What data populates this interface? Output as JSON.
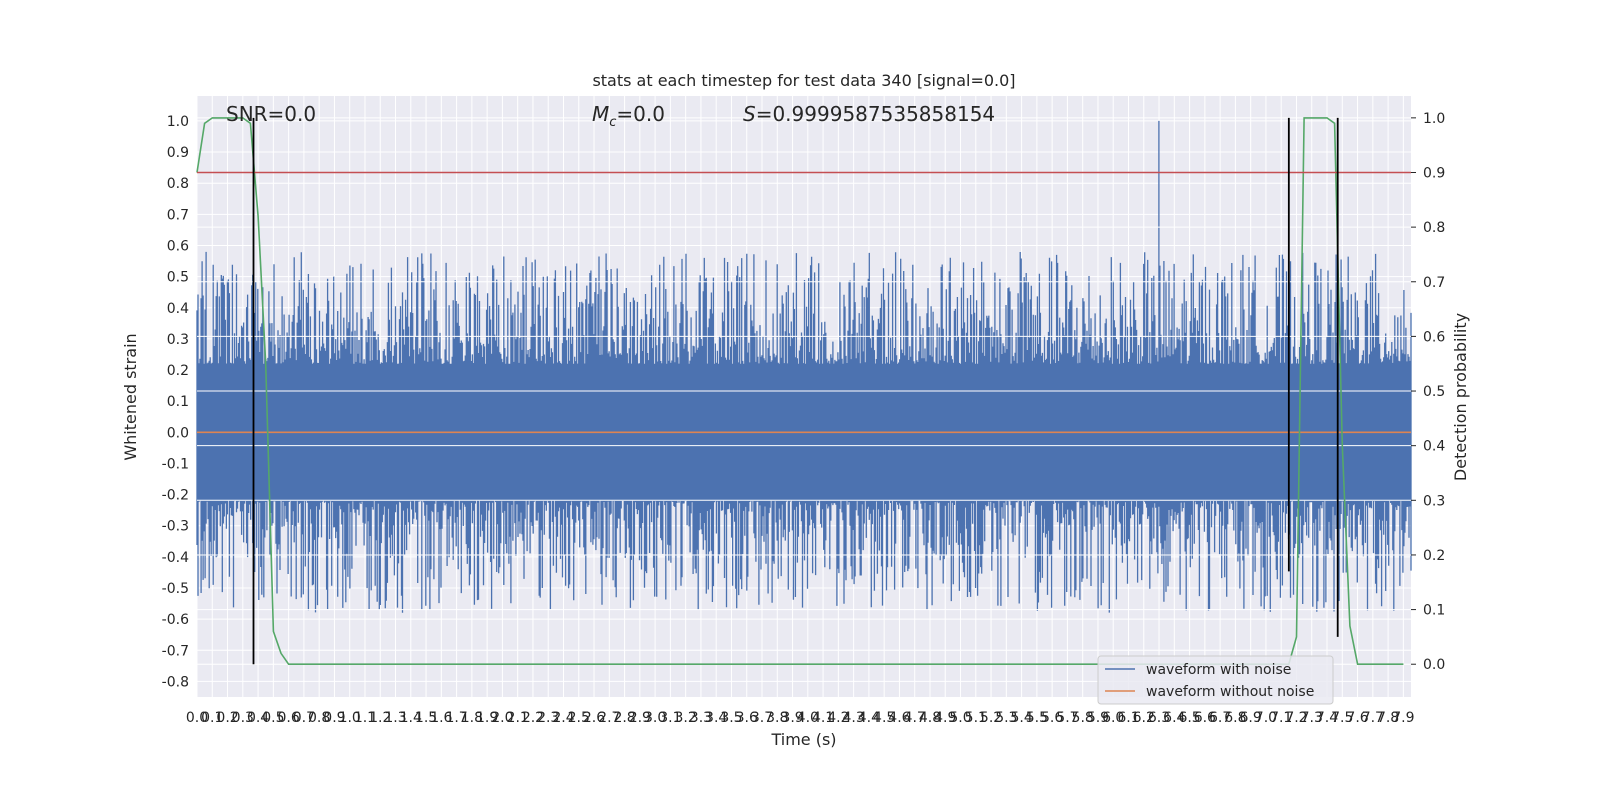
{
  "chart_data": {
    "type": "line",
    "title": "stats at each timestep for test data 340 [signal=0.0]",
    "xlabel": "Time (s)",
    "ylabel": "Whitened strain",
    "y2label": "Detection probability",
    "xlim": [
      0.0,
      7.95
    ],
    "ylim": [
      -0.85,
      1.08
    ],
    "y2lim": [
      -0.06,
      1.04
    ],
    "x_ticks": [
      0.0,
      0.1,
      0.2,
      0.3,
      0.4,
      0.5,
      0.6,
      0.7,
      0.8,
      0.9,
      1.0,
      1.1,
      1.2,
      1.3,
      1.4,
      1.5,
      1.6,
      1.7,
      1.8,
      1.9,
      2.0,
      2.1,
      2.2,
      2.3,
      2.4,
      2.5,
      2.6,
      2.7,
      2.8,
      2.9,
      3.0,
      3.1,
      3.2,
      3.3,
      3.4,
      3.5,
      3.6,
      3.7,
      3.8,
      3.9,
      4.0,
      4.1,
      4.2,
      4.3,
      4.4,
      4.5,
      4.6,
      4.7,
      4.8,
      4.9,
      5.0,
      5.1,
      5.2,
      5.3,
      5.4,
      5.5,
      5.6,
      5.7,
      5.8,
      5.9,
      6.0,
      6.1,
      6.2,
      6.3,
      6.4,
      6.5,
      6.6,
      6.7,
      6.8,
      6.9,
      7.0,
      7.1,
      7.2,
      7.3,
      7.4,
      7.5,
      7.6,
      7.7,
      7.8,
      7.9
    ],
    "y_ticks": [
      -0.8,
      -0.7,
      -0.6,
      -0.5,
      -0.4,
      -0.3,
      -0.2,
      -0.1,
      0.0,
      0.1,
      0.2,
      0.3,
      0.4,
      0.5,
      0.6,
      0.7,
      0.8,
      0.9,
      1.0
    ],
    "y2_ticks": [
      0.0,
      0.1,
      0.2,
      0.3,
      0.4,
      0.5,
      0.6,
      0.7,
      0.8,
      0.9,
      1.0
    ],
    "annotations": {
      "snr": "SNR=0.0",
      "mc_symbol": "M",
      "mc_sub": "c",
      "mc_value": "=0.0",
      "s_symbol": "S",
      "s_value": "=0.9999587535858154"
    },
    "series": [
      {
        "name": "waveform with noise",
        "color": "#4c72b0",
        "axis": "left",
        "peak_x": 6.3,
        "peak_y": 1.0,
        "typical_envelope": [
          -0.4,
          0.4
        ]
      },
      {
        "name": "waveform without noise",
        "color": "#dd8452",
        "axis": "left",
        "x": [
          0.0,
          7.95
        ],
        "y": [
          0.0,
          0.0
        ]
      },
      {
        "name": "",
        "color": "#55a868",
        "axis": "right",
        "x": [
          0.0,
          0.05,
          0.1,
          0.2,
          0.3,
          0.35,
          0.4,
          0.45,
          0.5,
          0.55,
          0.6,
          0.65,
          7.1,
          7.15,
          7.2,
          7.25,
          7.3,
          7.35,
          7.4,
          7.45,
          7.5,
          7.55,
          7.6,
          7.65,
          7.7,
          7.75,
          7.8,
          7.9
        ],
        "y": [
          0.9,
          0.99,
          1.0,
          1.0,
          1.0,
          0.99,
          0.82,
          0.55,
          0.06,
          0.02,
          0.0,
          0.0,
          0.0,
          0.0,
          0.05,
          1.0,
          1.0,
          1.0,
          1.0,
          0.99,
          0.4,
          0.07,
          0.0,
          0.0,
          0.0,
          0.0,
          0.0,
          0.0
        ]
      },
      {
        "name": "",
        "color": "#c44e52",
        "axis": "right",
        "x": [
          0.0,
          7.95
        ],
        "y": [
          0.9,
          0.9
        ]
      }
    ],
    "vertical_markers": [
      {
        "x": 0.37,
        "y2": [
          0.0,
          1.0
        ]
      },
      {
        "x": 7.15,
        "y2": [
          0.17,
          1.0
        ]
      },
      {
        "x": 7.47,
        "y2": [
          0.05,
          1.0
        ]
      }
    ],
    "grid": true,
    "legend": "lower-right"
  }
}
